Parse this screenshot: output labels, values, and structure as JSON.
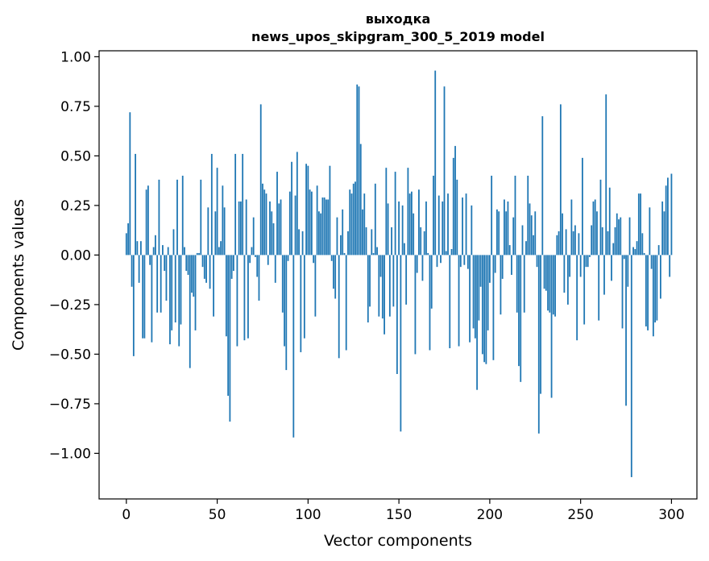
{
  "chart_data": {
    "type": "bar",
    "title": [
      "выходка",
      "news_upos_skipgram_300_5_2019 model"
    ],
    "xlabel": "Vector components",
    "ylabel": "Components values",
    "xlim": [
      -15,
      314
    ],
    "ylim": [
      -1.23,
      1.03
    ],
    "xticks": [
      0,
      50,
      100,
      150,
      200,
      250,
      300
    ],
    "xtick_labels": [
      "0",
      "50",
      "100",
      "150",
      "200",
      "250",
      "300"
    ],
    "yticks": [
      1.0,
      0.75,
      0.5,
      0.25,
      0.0,
      -0.25,
      -0.5,
      -0.75,
      -1.0
    ],
    "ytick_labels": [
      "1.00",
      "0.75",
      "0.50",
      "0.25",
      "0.00",
      "−0.25",
      "−0.50",
      "−0.75",
      "−1.00"
    ],
    "grid": false,
    "legend": "none",
    "bar_color": "#1f77b4",
    "x_start": 0,
    "values": [
      0.11,
      0.16,
      0.72,
      -0.16,
      -0.51,
      0.51,
      0.07,
      -0.14,
      0.07,
      -0.42,
      -0.42,
      0.33,
      0.35,
      -0.05,
      -0.44,
      0.04,
      0.1,
      -0.29,
      0.38,
      -0.29,
      0.05,
      -0.08,
      -0.23,
      0.04,
      -0.45,
      -0.38,
      0.13,
      -0.34,
      0.38,
      -0.46,
      -0.35,
      0.4,
      0.04,
      -0.08,
      -0.1,
      -0.57,
      -0.19,
      -0.21,
      -0.38,
      0.01,
      0.01,
      0.38,
      -0.06,
      -0.12,
      -0.14,
      0.24,
      -0.17,
      0.51,
      -0.31,
      0.22,
      0.44,
      0.04,
      0.07,
      0.35,
      0.24,
      -0.41,
      -0.71,
      -0.84,
      -0.12,
      -0.08,
      0.51,
      -0.46,
      0.27,
      0.27,
      0.51,
      -0.43,
      0.28,
      -0.42,
      -0.04,
      0.04,
      0.19,
      -0.01,
      -0.11,
      -0.23,
      0.76,
      0.36,
      0.33,
      0.31,
      -0.05,
      0.27,
      0.22,
      0.16,
      -0.14,
      0.42,
      0.26,
      0.28,
      -0.29,
      -0.46,
      -0.58,
      -0.03,
      0.32,
      0.47,
      -0.92,
      0.3,
      0.52,
      0.13,
      -0.49,
      0.12,
      -0.42,
      0.46,
      0.45,
      0.33,
      0.32,
      -0.04,
      -0.31,
      0.35,
      0.22,
      0.21,
      0.29,
      0.29,
      0.28,
      0.28,
      0.45,
      -0.03,
      -0.17,
      -0.22,
      0.19,
      -0.52,
      0.1,
      0.23,
      0.01,
      -0.48,
      0.12,
      0.33,
      0.31,
      0.36,
      0.37,
      0.86,
      0.85,
      0.56,
      0.23,
      0.31,
      0.14,
      -0.34,
      -0.26,
      0.13,
      0.01,
      0.36,
      0.04,
      -0.31,
      -0.11,
      -0.32,
      -0.4,
      0.44,
      0.26,
      -0.31,
      0.14,
      -0.26,
      0.42,
      -0.6,
      0.27,
      -0.89,
      0.25,
      0.06,
      -0.25,
      0.44,
      0.31,
      0.32,
      0.21,
      -0.5,
      -0.09,
      0.33,
      0.14,
      -0.13,
      0.12,
      0.27,
      0.01,
      -0.48,
      -0.27,
      0.4,
      0.93,
      -0.06,
      0.3,
      -0.04,
      0.27,
      0.85,
      0.02,
      0.31,
      -0.47,
      0.03,
      0.49,
      0.55,
      0.38,
      -0.46,
      -0.06,
      0.29,
      -0.05,
      0.31,
      -0.07,
      -0.44,
      0.25,
      -0.37,
      -0.42,
      -0.68,
      -0.33,
      -0.16,
      -0.5,
      -0.54,
      -0.55,
      -0.38,
      -0.14,
      0.4,
      -0.53,
      -0.09,
      0.23,
      0.22,
      -0.3,
      -0.12,
      0.28,
      0.22,
      0.27,
      0.05,
      -0.1,
      0.19,
      0.4,
      -0.29,
      -0.56,
      -0.64,
      0.15,
      -0.29,
      0.07,
      0.4,
      0.26,
      0.2,
      0.1,
      0.22,
      -0.06,
      -0.9,
      -0.7,
      0.7,
      -0.17,
      -0.18,
      -0.28,
      -0.29,
      -0.72,
      -0.3,
      -0.31,
      0.1,
      0.12,
      0.76,
      0.21,
      -0.19,
      0.13,
      -0.25,
      -0.11,
      0.28,
      0.12,
      0.15,
      -0.43,
      0.11,
      -0.11,
      0.49,
      -0.35,
      -0.06,
      -0.06,
      -0.01,
      0.15,
      0.27,
      0.28,
      0.22,
      -0.33,
      0.38,
      0.14,
      -0.2,
      0.81,
      0.12,
      0.34,
      -0.13,
      0.06,
      0.14,
      0.21,
      0.18,
      0.19,
      -0.37,
      -0.02,
      -0.76,
      -0.16,
      0.19,
      -1.12,
      0.04,
      0.03,
      0.07,
      0.31,
      0.31,
      0.11,
      0.01,
      -0.36,
      -0.38,
      0.24,
      -0.07,
      -0.41,
      -0.34,
      -0.33,
      0.05,
      -0.22,
      0.27,
      0.22,
      0.35,
      0.39,
      -0.11,
      0.41
    ]
  }
}
